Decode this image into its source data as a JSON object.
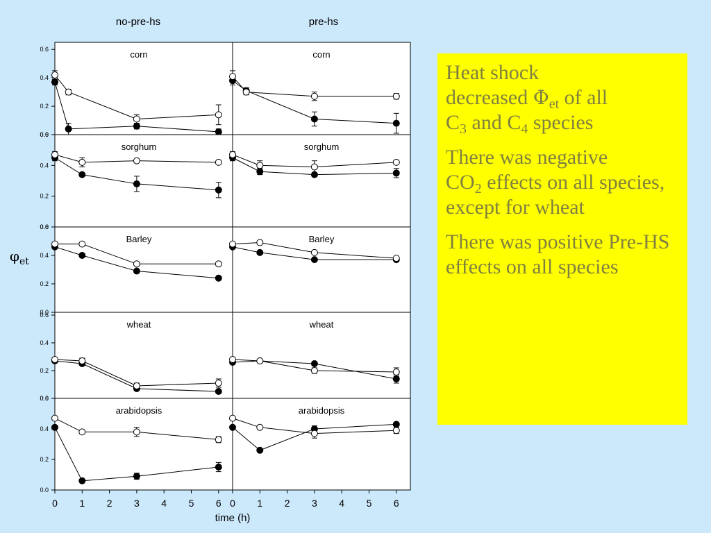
{
  "colors": {
    "background": "#cce8fb",
    "textbox_bg": "#ffff00",
    "textbox_text": "#808040",
    "series_no_co2": "#000000",
    "series_co2": "#ffffff"
  },
  "textbox": {
    "p1": {
      "t1": "Heat shock",
      "t2": "decreased ",
      "phi": "Φ",
      "phi_sub": "et",
      "t3": " of all",
      "c1": "C",
      "c1_sub": "3",
      "t4": " and C",
      "c2_sub": "4",
      "t5": " species"
    },
    "p2": {
      "t1": "There was negative",
      "t2": "CO",
      "t2_sub": "2",
      "t3": " effects on all species, except for wheat"
    },
    "p3": {
      "t1": "There was positive Pre-HS effects on all species"
    }
  },
  "chart_data": {
    "type": "scatter",
    "column_titles": [
      "no-pre-hs",
      "pre-hs"
    ],
    "ylabel": "φ",
    "ylabel_sub": "et",
    "xlabel": "time (h)",
    "x_ticks": [
      "0",
      "1",
      "2",
      "3",
      "4",
      "5",
      "6"
    ],
    "xlim": [
      0,
      6.5
    ],
    "panels": [
      {
        "species": "corn",
        "ylim": [
          0,
          0.65
        ],
        "y_ticks": [
          "0.0",
          "0.2",
          "0.4",
          "0.6"
        ],
        "no_pre_hs": {
          "filled": {
            "x": [
              0,
              0.5,
              3,
              6
            ],
            "y": [
              0.37,
              0.04,
              0.06,
              0.02
            ],
            "err": [
              0.02,
              0.04,
              0.02,
              0.02
            ]
          },
          "open": {
            "x": [
              0,
              0.5,
              3,
              6
            ],
            "y": [
              0.42,
              0.3,
              0.11,
              0.14
            ],
            "err": [
              0.03,
              0.02,
              0.03,
              0.07
            ]
          }
        },
        "pre_hs": {
          "filled": {
            "x": [
              0,
              0.5,
              3,
              6
            ],
            "y": [
              0.38,
              0.31,
              0.11,
              0.08
            ],
            "err": [
              0.03,
              0.02,
              0.05,
              0.07
            ]
          },
          "open": {
            "x": [
              0,
              0.5,
              3,
              6
            ],
            "y": [
              0.41,
              0.3,
              0.27,
              0.27
            ],
            "err": [
              0.04,
              0.02,
              0.03,
              0.02
            ]
          }
        }
      },
      {
        "species": "sorghum",
        "ylim": [
          0,
          0.6
        ],
        "y_ticks": [
          "0.0",
          "0.2",
          "0.4",
          "0.6"
        ],
        "no_pre_hs": {
          "filled": {
            "x": [
              0,
              1,
              3,
              6
            ],
            "y": [
              0.45,
              0.34,
              0.28,
              0.24
            ],
            "err": [
              0.02,
              0.01,
              0.05,
              0.05
            ]
          },
          "open": {
            "x": [
              0,
              1,
              3,
              6
            ],
            "y": [
              0.47,
              0.42,
              0.43,
              0.42
            ],
            "err": [
              0.02,
              0.03,
              0.01,
              0.01
            ]
          }
        },
        "pre_hs": {
          "filled": {
            "x": [
              0,
              1,
              3,
              6
            ],
            "y": [
              0.45,
              0.36,
              0.34,
              0.35
            ],
            "err": [
              0.02,
              0.02,
              0.01,
              0.03
            ]
          },
          "open": {
            "x": [
              0,
              1,
              3,
              6
            ],
            "y": [
              0.47,
              0.4,
              0.39,
              0.42
            ],
            "err": [
              0.02,
              0.03,
              0.04,
              0.01
            ]
          }
        }
      },
      {
        "species": "Barley",
        "ylim": [
          0,
          0.6
        ],
        "y_ticks": [
          "0.0",
          "0.2",
          "0.4",
          "0.6"
        ],
        "no_pre_hs": {
          "filled": {
            "x": [
              0,
              1,
              3,
              6
            ],
            "y": [
              0.46,
              0.4,
              0.29,
              0.24
            ],
            "err": [
              0.01,
              0.01,
              0.01,
              0.01
            ]
          },
          "open": {
            "x": [
              0,
              1,
              3,
              6
            ],
            "y": [
              0.48,
              0.48,
              0.34,
              0.34
            ],
            "err": [
              0.01,
              0.01,
              0.01,
              0.01
            ]
          }
        },
        "pre_hs": {
          "filled": {
            "x": [
              0,
              1,
              3,
              6
            ],
            "y": [
              0.46,
              0.42,
              0.37,
              0.37
            ],
            "err": [
              0.01,
              0.01,
              0.01,
              0.01
            ]
          },
          "open": {
            "x": [
              0,
              1,
              3,
              6
            ],
            "y": [
              0.48,
              0.49,
              0.42,
              0.38
            ],
            "err": [
              0.01,
              0.01,
              0.01,
              0.01
            ]
          }
        }
      },
      {
        "species": "wheat",
        "ylim": [
          0,
          0.62
        ],
        "y_ticks": [
          "0.0",
          "0.2",
          "0.4",
          "0.6"
        ],
        "no_pre_hs": {
          "filled": {
            "x": [
              0,
              1,
              3,
              6
            ],
            "y": [
              0.27,
              0.25,
              0.07,
              0.05
            ],
            "err": [
              0.01,
              0.01,
              0.01,
              0.01
            ]
          },
          "open": {
            "x": [
              0,
              1,
              3,
              6
            ],
            "y": [
              0.28,
              0.27,
              0.09,
              0.11
            ],
            "err": [
              0.01,
              0.02,
              0.02,
              0.03
            ]
          }
        },
        "pre_hs": {
          "filled": {
            "x": [
              0,
              1,
              3,
              6
            ],
            "y": [
              0.26,
              0.27,
              0.25,
              0.14
            ],
            "err": [
              0.01,
              0.01,
              0.01,
              0.03
            ]
          },
          "open": {
            "x": [
              0,
              1,
              3,
              6
            ],
            "y": [
              0.28,
              0.27,
              0.2,
              0.19
            ],
            "err": [
              0.01,
              0.01,
              0.02,
              0.03
            ]
          }
        }
      },
      {
        "species": "arabidopsis",
        "ylim": [
          0,
          0.6
        ],
        "y_ticks": [
          "0.0",
          "0.2",
          "0.4",
          "0.6"
        ],
        "no_pre_hs": {
          "filled": {
            "x": [
              0,
              1,
              3,
              6
            ],
            "y": [
              0.41,
              0.06,
              0.09,
              0.15
            ],
            "err": [
              0.01,
              0.01,
              0.02,
              0.03
            ]
          },
          "open": {
            "x": [
              0,
              1,
              3,
              6
            ],
            "y": [
              0.47,
              0.38,
              0.38,
              0.33
            ],
            "err": [
              0.01,
              0.01,
              0.03,
              0.02
            ]
          }
        },
        "pre_hs": {
          "filled": {
            "x": [
              0,
              1,
              3,
              6
            ],
            "y": [
              0.41,
              0.26,
              0.4,
              0.43
            ],
            "err": [
              0.01,
              0.01,
              0.02,
              0.01
            ]
          },
          "open": {
            "x": [
              0,
              1,
              3,
              6
            ],
            "y": [
              0.47,
              0.41,
              0.37,
              0.39
            ],
            "err": [
              0.01,
              0.01,
              0.03,
              0.02
            ]
          }
        }
      }
    ]
  }
}
